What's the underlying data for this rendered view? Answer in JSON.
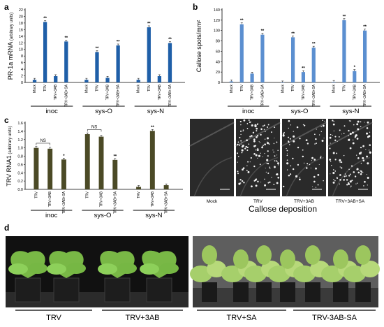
{
  "panels": {
    "a": "a",
    "b": "b",
    "c": "c",
    "d": "d"
  },
  "colors": {
    "a_bar": "#1f5fa8",
    "b_bar": "#5b8fd0",
    "c_bar": "#4b4a26",
    "photo_dark": "#1a1a1a",
    "leaf_green": "#7fc24a"
  },
  "chart_data": [
    {
      "panel": "a",
      "type": "bar",
      "ylabel_main": "PR-1a mRNA",
      "ylabel_unit": "(arbitrary units)",
      "ylim": [
        0,
        22
      ],
      "yticks": [
        0,
        2,
        4,
        6,
        8,
        10,
        12,
        14,
        16,
        18,
        20,
        22
      ],
      "groups": [
        {
          "name": "inoc",
          "categories": [
            "Mock",
            "TRV",
            "TRV+3AB",
            "TRV+3AB+SA"
          ],
          "values": [
            0.8,
            18.3,
            1.9,
            12.4
          ],
          "sig": [
            "",
            "**",
            "",
            "**"
          ]
        },
        {
          "name": "sys-O",
          "categories": [
            "Mock",
            "TRV",
            "TRV+3AB",
            "TRV+3AB+SA"
          ],
          "values": [
            0.8,
            9.2,
            1.4,
            11.2
          ],
          "sig": [
            "",
            "**",
            "",
            "**"
          ]
        },
        {
          "name": "sys-N",
          "categories": [
            "Mock",
            "TRV",
            "TRV+3AB",
            "TRV+3AB+SA"
          ],
          "values": [
            0.8,
            16.7,
            1.9,
            11.9
          ],
          "sig": [
            "",
            "**",
            "",
            "**"
          ]
        }
      ]
    },
    {
      "panel": "b",
      "type": "bar",
      "ylabel_main": "Callose spots/mm²",
      "ylim": [
        0,
        140
      ],
      "yticks": [
        0,
        20,
        40,
        60,
        80,
        100,
        120,
        140
      ],
      "groups": [
        {
          "name": "inoc",
          "categories": [
            "Mock",
            "TRV",
            "TRV+3AB",
            "TRV+3AB+SA"
          ],
          "values": [
            2,
            112,
            17,
            92
          ],
          "sig": [
            "",
            "**",
            "",
            "**"
          ]
        },
        {
          "name": "sys-O",
          "categories": [
            "Mock",
            "TRV",
            "TRV+3AB",
            "TRV+3AB+SA"
          ],
          "values": [
            0,
            87,
            20,
            67
          ],
          "sig": [
            "",
            "**",
            "**",
            "**"
          ]
        },
        {
          "name": "sys-N",
          "categories": [
            "Mock",
            "TRV",
            "TRV+3AB",
            "TRV+3AB+SA"
          ],
          "values": [
            1,
            120,
            22,
            100
          ],
          "sig": [
            "",
            "**",
            "*",
            "**"
          ]
        }
      ]
    },
    {
      "panel": "c",
      "type": "bar",
      "ylabel_main": "TRV RNA1",
      "ylabel_unit": "(arbitrary units)",
      "ylim": [
        0,
        1.6
      ],
      "yticks": [
        0,
        0.2,
        0.4,
        0.6,
        0.8,
        1.0,
        1.2,
        1.4,
        1.6
      ],
      "ytick_labels": [
        "0.0",
        "0.2",
        "0.4",
        "0.6",
        "0.8",
        "1.0",
        "1.2",
        "1.4",
        "1.6"
      ],
      "groups": [
        {
          "name": "inoc",
          "categories": [
            "TRV",
            "TRV+3AB",
            "TRV+3AB+SA"
          ],
          "values": [
            1.0,
            0.98,
            0.72
          ],
          "sig": [
            "",
            "",
            "*"
          ],
          "ns": "NS"
        },
        {
          "name": "sys-O",
          "categories": [
            "TRV",
            "TRV+3AB",
            "TRV+3AB+SA"
          ],
          "values": [
            1.33,
            1.27,
            0.71
          ],
          "sig": [
            "",
            "",
            "**"
          ],
          "ns": "NS"
        },
        {
          "name": "sys-N",
          "categories": [
            "TRV",
            "TRV+3AB",
            "TRV+3AB+SA"
          ],
          "values": [
            0.06,
            1.41,
            0.1
          ],
          "sig": [
            "",
            "**",
            ""
          ],
          "ns": ""
        }
      ]
    }
  ],
  "callose_images": {
    "labels": [
      "Mock",
      "TRV",
      "TRV+3AB",
      "TRV+3AB+SA"
    ],
    "density": [
      0,
      0.9,
      0.45,
      0.75
    ],
    "caption": "Callose deposition"
  },
  "plant_photos": {
    "labels": [
      "TRV",
      "TRV+3AB",
      "TRV+SA",
      "TRV-3AB-SA"
    ]
  }
}
